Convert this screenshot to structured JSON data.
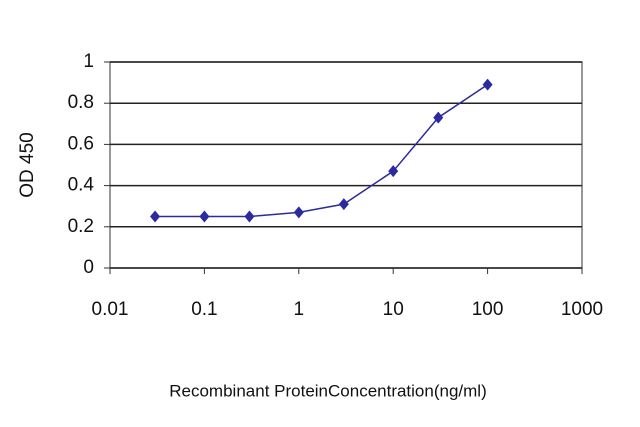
{
  "chart_data": {
    "type": "line",
    "title": null,
    "x_label": "Recombinant ProteinConcentration(ng/ml)",
    "y_label": "OD 450",
    "x": [
      0.03,
      0.1,
      0.3,
      1,
      3,
      10,
      30,
      100
    ],
    "series": [
      {
        "name": null,
        "color": "#2b2b9e",
        "values": [
          0.25,
          0.25,
          0.25,
          0.27,
          0.31,
          0.47,
          0.73,
          0.89
        ]
      }
    ],
    "xscale": "log",
    "xlim": [
      0.01,
      1000
    ],
    "xticks": [
      0.01,
      0.1,
      1,
      10,
      100,
      1000
    ],
    "ylim": [
      0,
      1
    ],
    "yticks": [
      0,
      0.2,
      0.4,
      0.6,
      0.8,
      1
    ],
    "grid": true
  }
}
